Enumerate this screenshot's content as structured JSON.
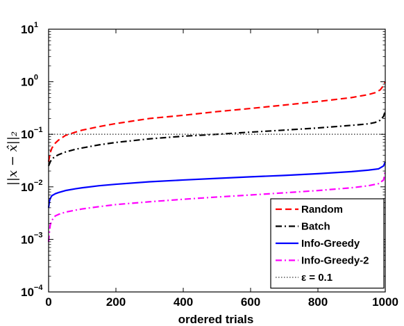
{
  "chart_data": {
    "type": "line",
    "xlabel": "ordered trials",
    "ylabel": "||x − x̂||₂",
    "xlim": [
      0,
      1000
    ],
    "ylim": [
      0.0001,
      10
    ],
    "yscale": "log",
    "grid": false,
    "legend_position": "bottom-right",
    "x_ticks": [
      "0",
      "200",
      "400",
      "600",
      "800",
      "1000"
    ],
    "y_ticks": [
      {
        "value": 0.0001,
        "base": "10",
        "exp": "−4"
      },
      {
        "value": 0.001,
        "base": "10",
        "exp": "−3"
      },
      {
        "value": 0.01,
        "base": "10",
        "exp": "−2"
      },
      {
        "value": 0.1,
        "base": "10",
        "exp": "−1"
      },
      {
        "value": 1,
        "base": "10",
        "exp": "0"
      },
      {
        "value": 10,
        "base": "10",
        "exp": "1"
      }
    ],
    "series": [
      {
        "name": "Random",
        "color": "#ff0000",
        "style": "dashed",
        "x": [
          0,
          5,
          10,
          20,
          30,
          50,
          80,
          100,
          150,
          200,
          300,
          400,
          500,
          600,
          700,
          800,
          900,
          950,
          970,
          985,
          995,
          1000
        ],
        "y": [
          0.03,
          0.045,
          0.055,
          0.068,
          0.078,
          0.095,
          0.11,
          0.12,
          0.14,
          0.16,
          0.2,
          0.23,
          0.27,
          0.31,
          0.36,
          0.42,
          0.5,
          0.57,
          0.62,
          0.7,
          0.85,
          1.0
        ]
      },
      {
        "name": "Batch",
        "color": "#000000",
        "style": "dashdot",
        "x": [
          0,
          5,
          10,
          20,
          30,
          50,
          80,
          100,
          150,
          200,
          300,
          400,
          500,
          600,
          700,
          800,
          900,
          950,
          970,
          985,
          995,
          1000
        ],
        "y": [
          0.025,
          0.03,
          0.034,
          0.038,
          0.041,
          0.046,
          0.052,
          0.055,
          0.063,
          0.07,
          0.082,
          0.092,
          0.1,
          0.11,
          0.12,
          0.132,
          0.148,
          0.158,
          0.168,
          0.185,
          0.22,
          0.28
        ]
      },
      {
        "name": "Info-Greedy",
        "color": "#0000ff",
        "style": "solid",
        "x": [
          0,
          3,
          6,
          10,
          20,
          30,
          50,
          80,
          100,
          150,
          200,
          300,
          400,
          500,
          600,
          700,
          800,
          900,
          950,
          980,
          995,
          1000
        ],
        "y": [
          0.004,
          0.0055,
          0.0062,
          0.0068,
          0.0074,
          0.0078,
          0.0085,
          0.0092,
          0.0096,
          0.0105,
          0.0112,
          0.0125,
          0.0135,
          0.0145,
          0.0155,
          0.0165,
          0.0178,
          0.0195,
          0.0208,
          0.022,
          0.025,
          0.03
        ]
      },
      {
        "name": "Info-Greedy-2",
        "color": "#ff00ff",
        "style": "dashdot",
        "x": [
          0,
          2,
          5,
          10,
          15,
          20,
          30,
          50,
          80,
          100,
          150,
          200,
          300,
          400,
          500,
          600,
          700,
          800,
          900,
          950,
          980,
          995,
          1000
        ],
        "y": [
          0.0009,
          0.0013,
          0.0019,
          0.0023,
          0.0026,
          0.0028,
          0.003,
          0.0033,
          0.0036,
          0.0038,
          0.0042,
          0.0046,
          0.0052,
          0.0058,
          0.0064,
          0.007,
          0.0077,
          0.0085,
          0.0096,
          0.0105,
          0.0115,
          0.0135,
          0.02
        ]
      },
      {
        "name": "ε = 0.1",
        "color": "#555555",
        "style": "dotted",
        "x": [
          0,
          1000
        ],
        "y": [
          0.1,
          0.1
        ]
      }
    ]
  }
}
